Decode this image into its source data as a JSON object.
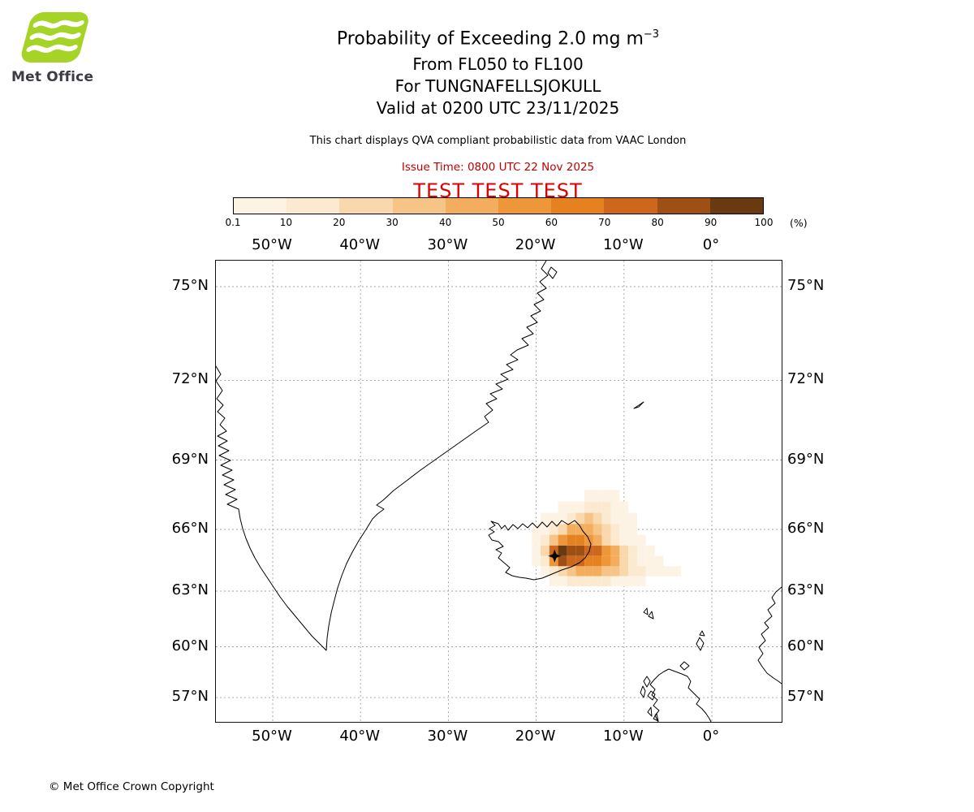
{
  "header": {
    "brand": "Met Office",
    "logo_green": "#a5d326",
    "title": "Probability of Exceeding 2.0 mg m",
    "title_exponent": "−3",
    "flight_levels": "From FL050 to FL100",
    "volcano_line": "For TUNGNAFELLSJOKULL",
    "valid_line": "Valid at 0200 UTC 23/11/2025",
    "note": "This chart displays QVA compliant probabilistic data from VAAC London",
    "issue_time": "Issue Time: 0800 UTC 22 Nov 2025",
    "issue_color": "#c00000",
    "test_banner": "TEST TEST TEST",
    "test_color": "#dd0000"
  },
  "footer": {
    "copyright": "© Met Office Crown Copyright"
  },
  "chart_data": {
    "type": "heatmap",
    "title": "Probability of Exceeding 2.0 mg m⁻³",
    "subtitle": [
      "From FL050 to FL100",
      "For TUNGNAFELLSJOKULL",
      "Valid at 0200 UTC 23/11/2025"
    ],
    "source_note": "This chart displays QVA compliant probabilistic data from VAAC London",
    "issue_time": "0800 UTC 22 Nov 2025",
    "projection": "mercator",
    "legend_position": "top",
    "grid": "dashed",
    "lon_ticks": [
      {
        "lon": -50,
        "label": "50°W"
      },
      {
        "lon": -40,
        "label": "40°W"
      },
      {
        "lon": -30,
        "label": "30°W"
      },
      {
        "lon": -20,
        "label": "20°W"
      },
      {
        "lon": -10,
        "label": "10°W"
      },
      {
        "lon": 0,
        "label": "0°"
      }
    ],
    "lat_ticks": [
      {
        "lat": 75,
        "label": "75°N"
      },
      {
        "lat": 72,
        "label": "72°N"
      },
      {
        "lat": 69,
        "label": "69°N"
      },
      {
        "lat": 66,
        "label": "66°N"
      },
      {
        "lat": 63,
        "label": "63°N"
      },
      {
        "lat": 60,
        "label": "60°N"
      },
      {
        "lat": 57,
        "label": "57°N"
      }
    ],
    "colorbar": {
      "levels": [
        "0.1",
        "10",
        "20",
        "30",
        "40",
        "50",
        "60",
        "70",
        "80",
        "90",
        "100"
      ],
      "unit": "(%)",
      "colors": [
        "#fdf3e4",
        "#fbe9d0",
        "#f8d8ac",
        "#f5c486",
        "#f2ae5e",
        "#ee9739",
        "#e68120",
        "#cc671b",
        "#9e5014",
        "#69390f"
      ]
    },
    "volcano": {
      "name": "TUNGNAFELLSJOKULL",
      "lon": -17.9,
      "lat": 64.75
    },
    "plume_grid": {
      "lon0": -22,
      "dlon": 1,
      "lat0": 67.5,
      "dlat": -0.5,
      "values": [
        [
          0,
          0,
          0,
          0,
          0,
          0,
          0,
          0,
          3,
          5,
          3,
          2,
          0,
          0,
          0,
          0,
          0,
          0,
          0,
          0
        ],
        [
          0,
          0,
          0,
          0,
          0,
          3,
          5,
          8,
          12,
          15,
          10,
          5,
          3,
          0,
          0,
          0,
          0,
          0,
          0,
          0
        ],
        [
          0,
          0,
          0,
          3,
          5,
          8,
          15,
          25,
          30,
          25,
          15,
          8,
          5,
          3,
          0,
          0,
          0,
          0,
          0,
          0
        ],
        [
          0,
          0,
          3,
          5,
          12,
          25,
          40,
          45,
          40,
          32,
          22,
          12,
          6,
          3,
          0,
          0,
          0,
          0,
          0,
          0
        ],
        [
          0,
          0,
          3,
          12,
          30,
          55,
          65,
          62,
          55,
          42,
          28,
          16,
          8,
          5,
          3,
          0,
          0,
          0,
          0,
          0
        ],
        [
          0,
          0,
          5,
          22,
          72,
          92,
          88,
          82,
          75,
          70,
          55,
          40,
          25,
          12,
          5,
          3,
          0,
          0,
          0,
          0
        ],
        [
          0,
          0,
          3,
          12,
          55,
          82,
          78,
          72,
          68,
          62,
          55,
          42,
          28,
          15,
          8,
          5,
          3,
          0,
          0,
          0
        ],
        [
          0,
          0,
          0,
          3,
          12,
          25,
          35,
          45,
          48,
          45,
          38,
          30,
          22,
          15,
          10,
          6,
          3,
          3,
          3,
          0
        ],
        [
          0,
          0,
          0,
          0,
          3,
          6,
          10,
          14,
          18,
          16,
          12,
          8,
          6,
          4,
          3,
          0,
          0,
          0,
          0,
          0
        ]
      ]
    }
  }
}
